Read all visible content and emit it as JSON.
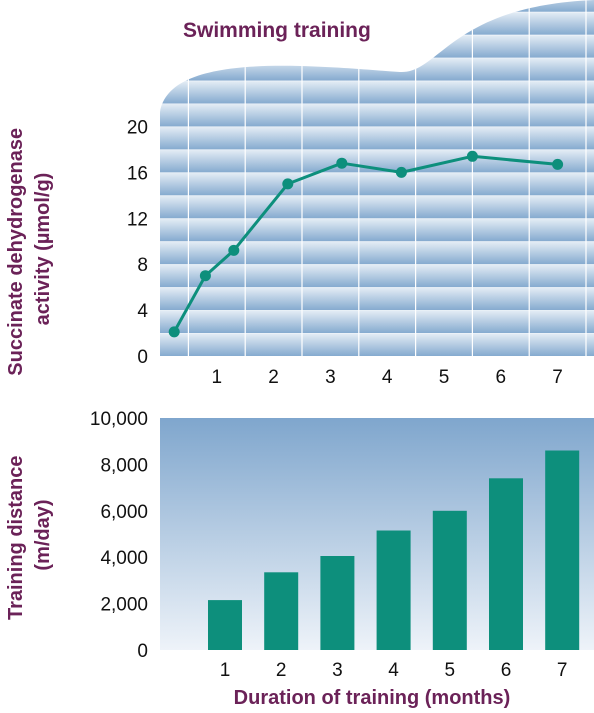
{
  "title": "Swimming training",
  "colors": {
    "accent": "#6b2258",
    "data": "#0d8f7c",
    "panel_light": "#e4edf5",
    "panel_dark": "#82a8cd",
    "grid": "#ffffff"
  },
  "chart_data": [
    {
      "type": "line",
      "xlabel": "",
      "ylabel": "Succinate dehydrogenase activity (µmol/g)",
      "ylabel_lines": [
        "Succinate dehydrogenase",
        "activity (µmol/g)"
      ],
      "xlim": [
        0,
        7.5
      ],
      "ylim": [
        0,
        20
      ],
      "x_ticks": [
        "1",
        "2",
        "3",
        "4",
        "5",
        "6",
        "7"
      ],
      "y_ticks": [
        "0",
        "4",
        "8",
        "12",
        "16",
        "20"
      ],
      "grid": true,
      "series": [
        {
          "x": [
            0.25,
            0.8,
            1.3,
            2.25,
            3.2,
            4.25,
            5.5,
            7.0
          ],
          "y": [
            2.1,
            7.0,
            9.2,
            15.0,
            16.8,
            16.0,
            17.4,
            16.7
          ]
        }
      ]
    },
    {
      "type": "bar",
      "xlabel": "Duration of training (months)",
      "ylabel": "Training distance (m/day)",
      "ylabel_lines": [
        "Training distance",
        "(m/day)"
      ],
      "categories": [
        "1",
        "2",
        "3",
        "4",
        "5",
        "6",
        "7"
      ],
      "values": [
        2150,
        3350,
        4050,
        5150,
        6000,
        7400,
        8600
      ],
      "ylim": [
        0,
        10000
      ],
      "y_ticks": [
        "0",
        "2,000",
        "4,000",
        "6,000",
        "8,000",
        "10,000"
      ],
      "grid": false
    }
  ]
}
